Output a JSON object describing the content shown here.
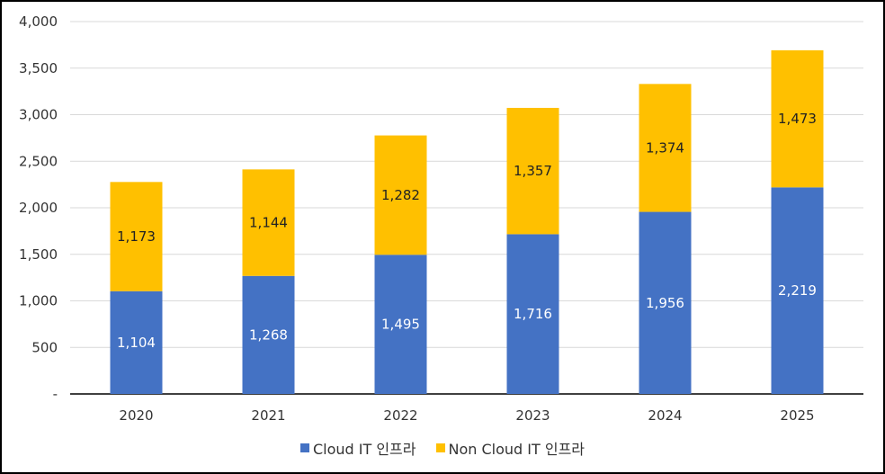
{
  "chart_data": {
    "type": "bar",
    "stacked": true,
    "categories": [
      "2020",
      "2021",
      "2022",
      "2023",
      "2024",
      "2025"
    ],
    "series": [
      {
        "name": "Cloud IT 인프라",
        "color": "#4472C4",
        "label_color": "#ffffff",
        "values": [
          1104,
          1268,
          1495,
          1716,
          1956,
          2219
        ]
      },
      {
        "name": "Non Cloud IT 인프라",
        "color": "#FFC000",
        "label_color": "#222222",
        "values": [
          1173,
          1144,
          1282,
          1357,
          1374,
          1473
        ]
      }
    ],
    "ylim": [
      0,
      4000
    ],
    "yticks": [
      0,
      500,
      1000,
      1500,
      2000,
      2500,
      3000,
      3500,
      4000
    ],
    "ytick_labels": [
      "-",
      "500",
      "1,000",
      "1,500",
      "2,000",
      "2,500",
      "3,000",
      "3,500",
      "4,000"
    ],
    "grid": true,
    "legend_position": "bottom"
  }
}
